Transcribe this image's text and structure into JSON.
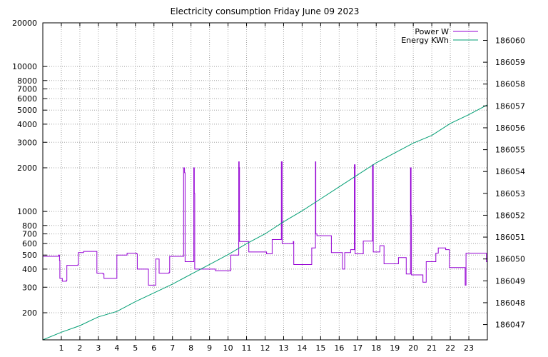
{
  "chart_data": {
    "type": "line",
    "title": "Electricity consumption Friday June 09 2023",
    "xlim": [
      0,
      24
    ],
    "x_ticks": [
      1,
      2,
      3,
      4,
      5,
      6,
      7,
      8,
      9,
      10,
      11,
      12,
      13,
      14,
      15,
      16,
      17,
      18,
      19,
      20,
      21,
      22,
      23
    ],
    "y_left": {
      "scale": "log",
      "lim": [
        130,
        20000
      ],
      "ticks": [
        200,
        300,
        400,
        500,
        600,
        700,
        800,
        1000,
        2000,
        3000,
        4000,
        5000,
        6000,
        7000,
        8000,
        10000,
        20000
      ]
    },
    "y_right": {
      "lim": [
        186046.3,
        186060.8
      ],
      "ticks": [
        186047,
        186048,
        186049,
        186050,
        186051,
        186052,
        186053,
        186054,
        186055,
        186056,
        186057,
        186058,
        186059,
        186060
      ]
    },
    "grid": true,
    "legend_position": "top-right",
    "series": [
      {
        "name": "Power W",
        "axis": "left",
        "color": "#9400d3",
        "step": true,
        "points": [
          [
            0.0,
            490
          ],
          [
            0.85,
            500
          ],
          [
            0.9,
            460
          ],
          [
            0.92,
            345
          ],
          [
            1.05,
            330
          ],
          [
            1.28,
            335
          ],
          [
            1.3,
            425
          ],
          [
            1.9,
            430
          ],
          [
            1.92,
            520
          ],
          [
            2.2,
            530
          ],
          [
            2.9,
            530
          ],
          [
            2.92,
            375
          ],
          [
            3.25,
            370
          ],
          [
            3.3,
            345
          ],
          [
            3.95,
            345
          ],
          [
            4.0,
            500
          ],
          [
            4.5,
            500
          ],
          [
            4.55,
            515
          ],
          [
            5.05,
            510
          ],
          [
            5.1,
            400
          ],
          [
            5.65,
            400
          ],
          [
            5.7,
            310
          ],
          [
            6.05,
            310
          ],
          [
            6.1,
            470
          ],
          [
            6.25,
            470
          ],
          [
            6.28,
            375
          ],
          [
            6.82,
            380
          ],
          [
            6.85,
            490
          ],
          [
            7.58,
            490
          ],
          [
            7.6,
            2000
          ],
          [
            7.65,
            1850
          ],
          [
            7.68,
            450
          ],
          [
            8.12,
            450
          ],
          [
            8.15,
            2000
          ],
          [
            8.18,
            1330
          ],
          [
            8.2,
            400
          ],
          [
            9.3,
            400
          ],
          [
            9.32,
            390
          ],
          [
            10.12,
            390
          ],
          [
            10.15,
            500
          ],
          [
            10.55,
            500
          ],
          [
            10.58,
            2200
          ],
          [
            10.6,
            2000
          ],
          [
            10.62,
            620
          ],
          [
            11.1,
            620
          ],
          [
            11.12,
            525
          ],
          [
            12.05,
            525
          ],
          [
            12.08,
            510
          ],
          [
            12.35,
            510
          ],
          [
            12.38,
            640
          ],
          [
            12.85,
            640
          ],
          [
            12.88,
            2200
          ],
          [
            12.92,
            600
          ],
          [
            13.5,
            600
          ],
          [
            13.52,
            620
          ],
          [
            13.55,
            430
          ],
          [
            14.5,
            430
          ],
          [
            14.52,
            560
          ],
          [
            14.7,
            560
          ],
          [
            14.72,
            2200
          ],
          [
            14.74,
            700
          ],
          [
            14.8,
            680
          ],
          [
            15.55,
            680
          ],
          [
            15.58,
            520
          ],
          [
            16.15,
            520
          ],
          [
            16.18,
            400
          ],
          [
            16.3,
            520
          ],
          [
            16.6,
            520
          ],
          [
            16.62,
            545
          ],
          [
            16.8,
            545
          ],
          [
            16.82,
            2100
          ],
          [
            16.86,
            510
          ],
          [
            17.28,
            510
          ],
          [
            17.3,
            625
          ],
          [
            17.78,
            625
          ],
          [
            17.8,
            2100
          ],
          [
            17.84,
            525
          ],
          [
            18.18,
            525
          ],
          [
            18.2,
            580
          ],
          [
            18.4,
            580
          ],
          [
            18.42,
            435
          ],
          [
            19.18,
            435
          ],
          [
            19.2,
            480
          ],
          [
            19.6,
            480
          ],
          [
            19.62,
            370
          ],
          [
            19.82,
            370
          ],
          [
            19.85,
            2000
          ],
          [
            19.88,
            940
          ],
          [
            19.9,
            365
          ],
          [
            20.5,
            365
          ],
          [
            20.52,
            325
          ],
          [
            20.68,
            325
          ],
          [
            20.7,
            450
          ],
          [
            21.2,
            450
          ],
          [
            21.22,
            515
          ],
          [
            21.32,
            515
          ],
          [
            21.35,
            560
          ],
          [
            21.7,
            560
          ],
          [
            21.75,
            545
          ],
          [
            21.9,
            545
          ],
          [
            21.95,
            410
          ],
          [
            22.75,
            410
          ],
          [
            22.8,
            310
          ],
          [
            22.85,
            515
          ],
          [
            23.9,
            515
          ],
          [
            23.95,
            450
          ],
          [
            24.0,
            450
          ]
        ]
      },
      {
        "name": "Energy KWh",
        "axis": "right",
        "color": "#009e73",
        "step": false,
        "points": [
          [
            0.0,
            186046.3
          ],
          [
            1.0,
            186046.65
          ],
          [
            2.0,
            186046.95
          ],
          [
            3.0,
            186047.35
          ],
          [
            4.0,
            186047.6
          ],
          [
            5.0,
            186048.05
          ],
          [
            6.0,
            186048.45
          ],
          [
            7.0,
            186048.85
          ],
          [
            8.0,
            186049.3
          ],
          [
            9.0,
            186049.75
          ],
          [
            10.0,
            186050.2
          ],
          [
            11.0,
            186050.7
          ],
          [
            12.0,
            186051.15
          ],
          [
            13.0,
            186051.7
          ],
          [
            14.0,
            186052.2
          ],
          [
            15.0,
            186052.75
          ],
          [
            16.0,
            186053.3
          ],
          [
            17.0,
            186053.85
          ],
          [
            18.0,
            186054.4
          ],
          [
            19.0,
            186054.85
          ],
          [
            20.0,
            186055.3
          ],
          [
            21.0,
            186055.65
          ],
          [
            22.0,
            186056.2
          ],
          [
            23.0,
            186056.6
          ],
          [
            24.0,
            186057.05
          ]
        ]
      }
    ]
  }
}
